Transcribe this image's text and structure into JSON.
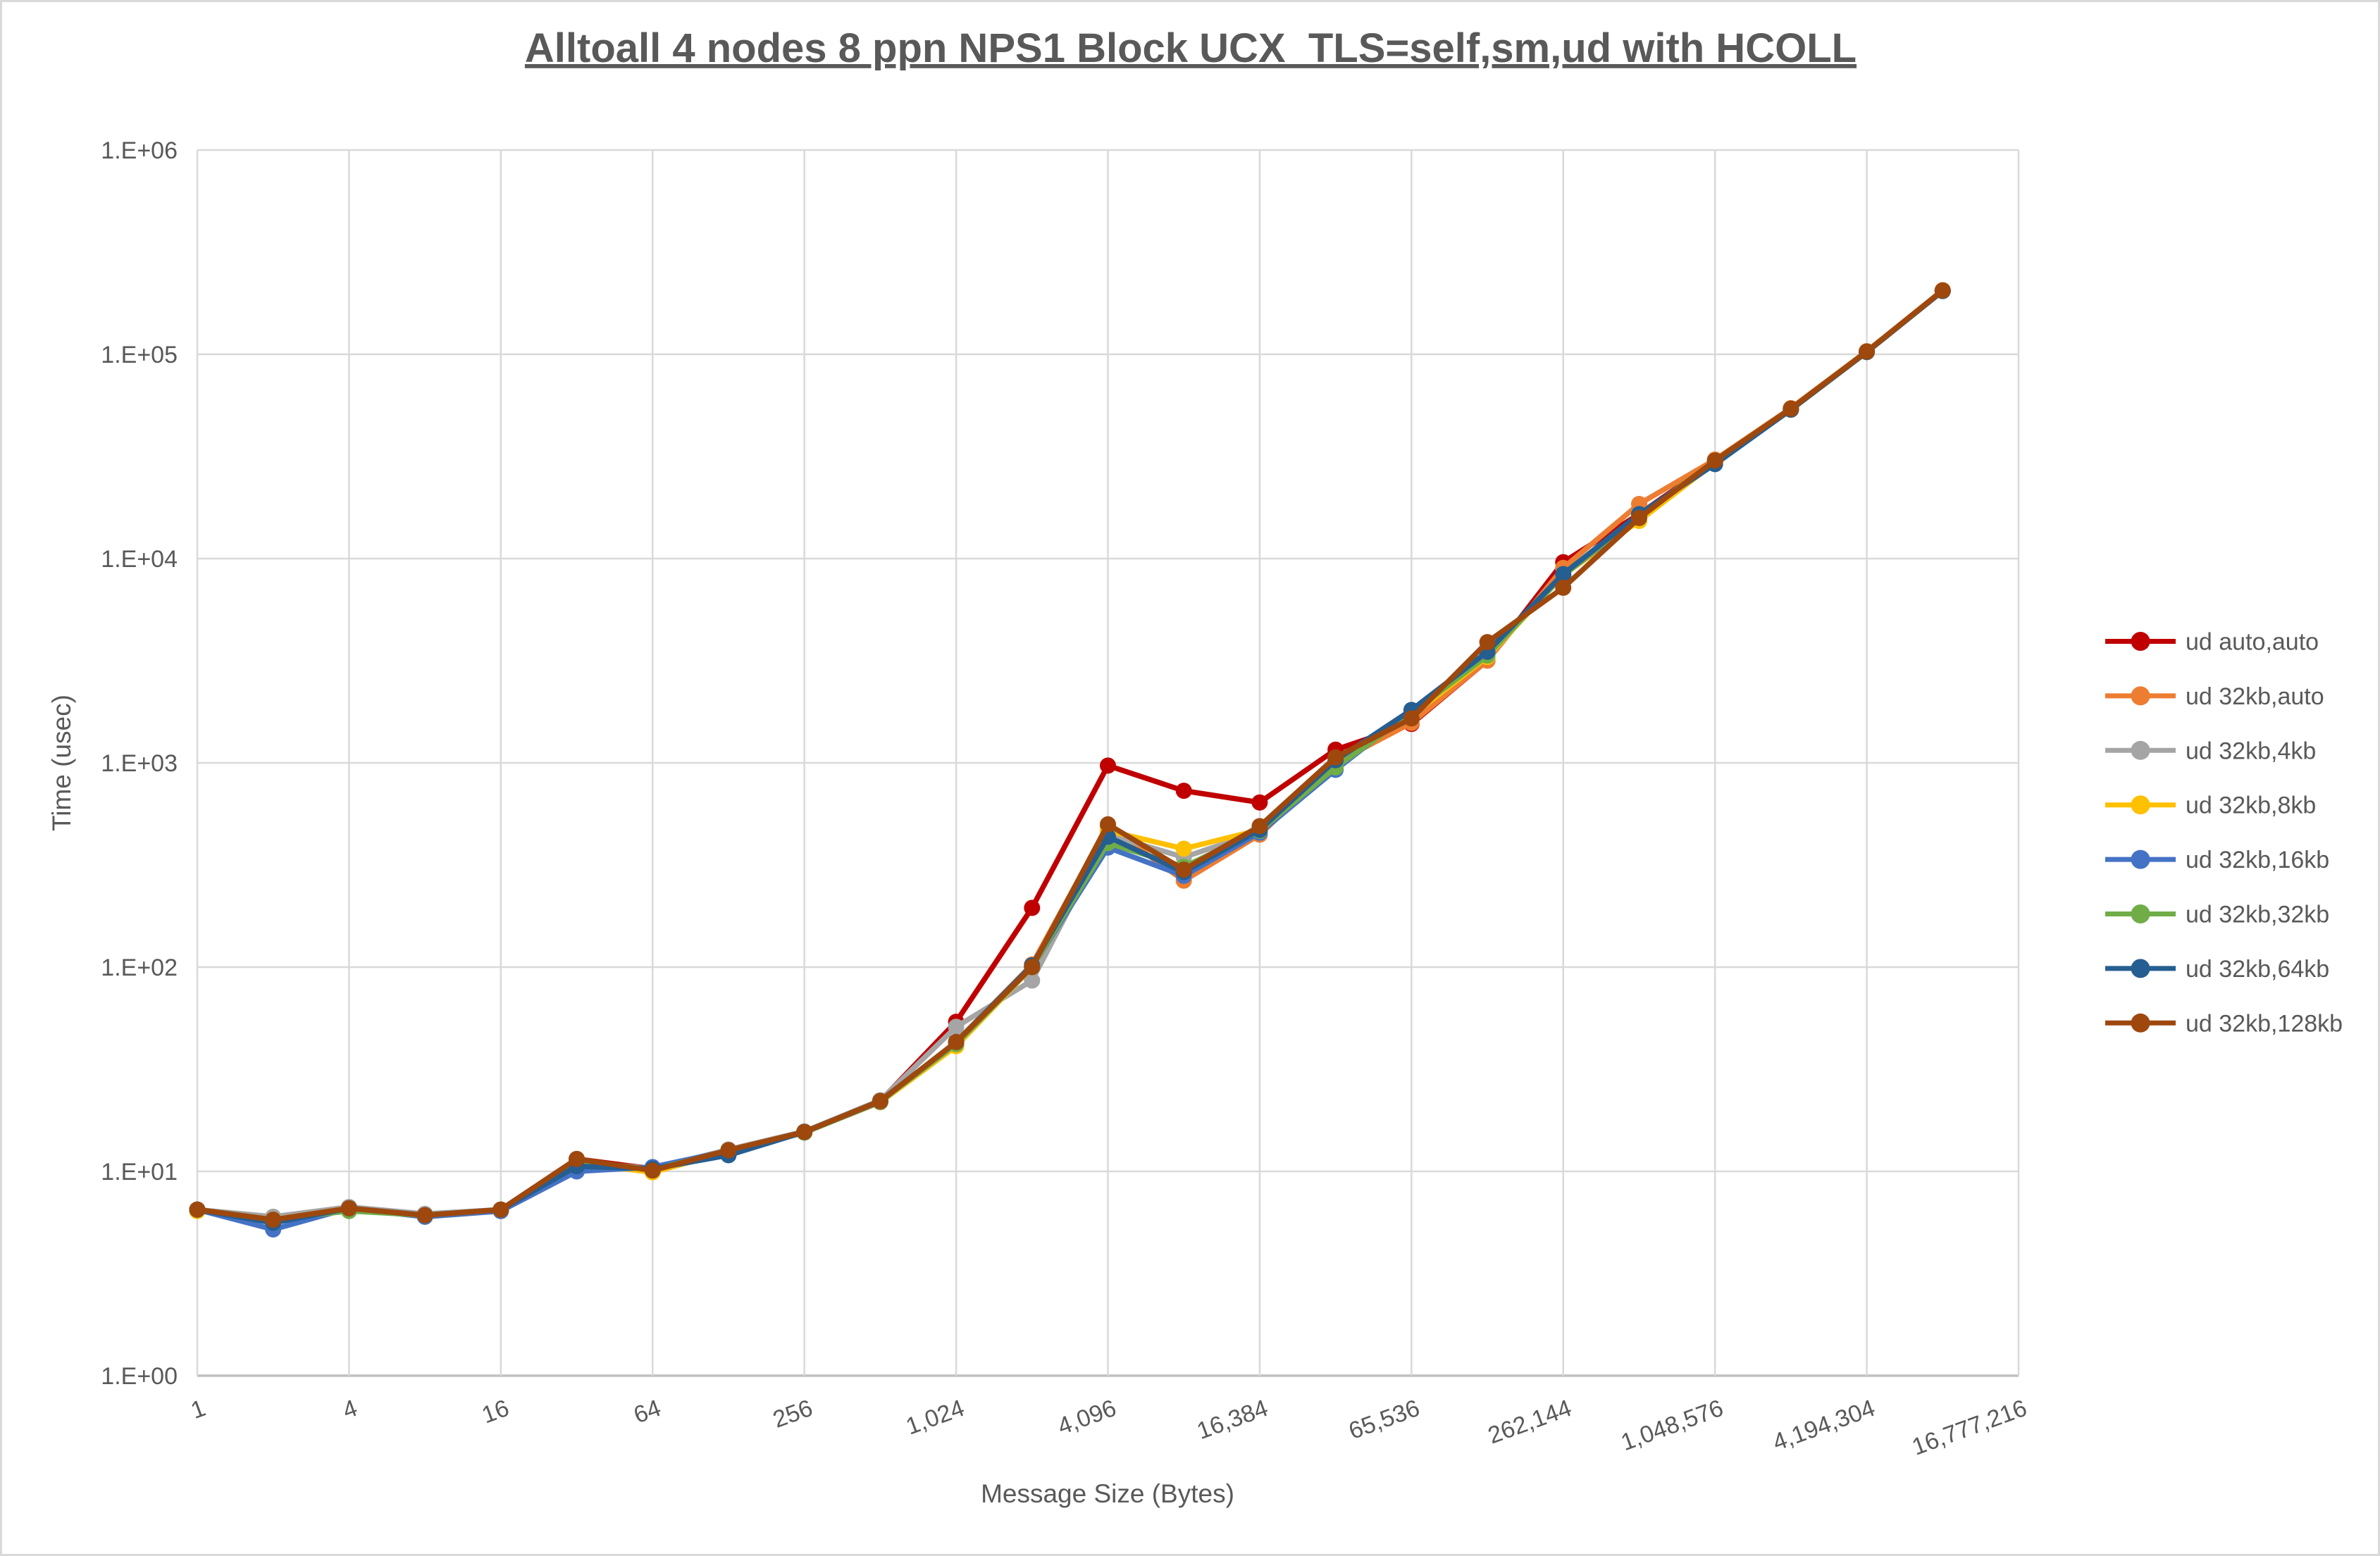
{
  "title": "Alltoall 4 nodes 8 ppn NPS1 Block UCX_TLS=self,sm,ud with HCOLL",
  "colors": {
    "gridline": "#D9D9D9",
    "axis_line": "#BFBFBF",
    "text": "#595959",
    "background": "#FFFFFF"
  },
  "chart_data": {
    "type": "line",
    "title": "Alltoall 4 nodes 8 ppn NPS1 Block UCX_TLS=self,sm,ud with HCOLL",
    "xlabel": "Message Size (Bytes)",
    "ylabel": "Time (usec)",
    "x_scale": "categorical-powers-of-2",
    "y_scale": "log10",
    "ylim": [
      1,
      1000000
    ],
    "y_tick_labels": [
      "1.E+00",
      "1.E+01",
      "1.E+02",
      "1.E+03",
      "1.E+04",
      "1.E+05",
      "1.E+06"
    ],
    "x_tick_labels": [
      "1",
      "4",
      "16",
      "64",
      "256",
      "1,024",
      "4,096",
      "16,384",
      "65,536",
      "262,144",
      "1,048,576",
      "4,194,304",
      "16,777,216"
    ],
    "x_axis_total_categories": 25,
    "sizes": [
      1,
      2,
      4,
      8,
      16,
      32,
      64,
      128,
      256,
      512,
      1024,
      2048,
      4096,
      8192,
      16384,
      32768,
      65536,
      131072,
      262144,
      524288,
      1048576,
      2097152,
      4194304,
      8388608
    ],
    "legend_position": "right",
    "grid": true,
    "series": [
      {
        "name": "ud auto,auto",
        "color": "#C00000",
        "values": [
          6.5,
          5.9,
          6.6,
          6.1,
          6.5,
          11.5,
          10.3,
          12.7,
          15.6,
          22.1,
          54,
          195,
          970,
          730,
          640,
          1160,
          1550,
          3170,
          9600,
          16500,
          30000,
          54000,
          103000,
          205000
        ]
      },
      {
        "name": "ud 32kb,auto",
        "color": "#ED7D31",
        "values": [
          6.5,
          5.9,
          6.6,
          6.1,
          6.5,
          11.3,
          10.2,
          12.6,
          15.5,
          22.0,
          43,
          103,
          490,
          265,
          445,
          1000,
          1570,
          3170,
          9000,
          18500,
          30500,
          54500,
          103500,
          206000
        ]
      },
      {
        "name": "ud 32kb,4kb",
        "color": "#A5A5A5",
        "values": [
          6.5,
          6.0,
          6.7,
          6.2,
          6.5,
          11.2,
          10.3,
          12.8,
          15.7,
          22.3,
          51,
          86,
          445,
          345,
          460,
          1000,
          1750,
          3300,
          8300,
          16000,
          29800,
          53800,
          102800,
          204500
        ]
      },
      {
        "name": "ud 32kb,8kb",
        "color": "#FFC000",
        "values": [
          6.4,
          5.8,
          6.6,
          6.0,
          6.4,
          11.0,
          9.9,
          12.5,
          15.5,
          21.8,
          41,
          100,
          465,
          380,
          470,
          1010,
          1700,
          3300,
          8300,
          15300,
          29500,
          53500,
          102500,
          204000
        ]
      },
      {
        "name": "ud 32kb,16kb",
        "color": "#4472C4",
        "values": [
          6.5,
          5.2,
          6.6,
          6.0,
          6.4,
          10.0,
          10.5,
          12.6,
          15.5,
          21.9,
          43,
          100,
          385,
          280,
          455,
          925,
          1800,
          3400,
          8300,
          16000,
          29800,
          53800,
          102800,
          204500
        ]
      },
      {
        "name": "ud 32kb,32kb",
        "color": "#70AD47",
        "values": [
          6.5,
          5.8,
          6.4,
          6.1,
          6.5,
          11.2,
          10.2,
          12.6,
          15.5,
          22.0,
          42,
          100,
          405,
          310,
          465,
          950,
          1750,
          3350,
          8300,
          16200,
          30000,
          54000,
          103000,
          205000
        ]
      },
      {
        "name": "ud 32kb,64kb",
        "color": "#255E91",
        "values": [
          6.5,
          5.6,
          6.6,
          6.1,
          6.5,
          10.6,
          10.3,
          12.0,
          15.6,
          22.1,
          43,
          102,
          435,
          292,
          470,
          1030,
          1815,
          3500,
          8400,
          16500,
          29000,
          53600,
          102600,
          204200
        ]
      },
      {
        "name": "ud 32kb,128kb",
        "color": "#9E480E",
        "values": [
          6.5,
          5.8,
          6.6,
          6.1,
          6.5,
          11.5,
          10.1,
          12.7,
          15.6,
          22.1,
          43,
          100,
          500,
          300,
          490,
          1065,
          1650,
          3900,
          7200,
          15800,
          30200,
          54200,
          103200,
          205500
        ]
      }
    ]
  }
}
